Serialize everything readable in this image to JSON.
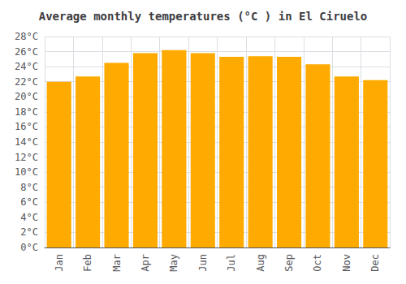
{
  "chart_data": {
    "type": "bar",
    "title": "Average monthly temperatures (°C ) in El Ciruelo",
    "categories": [
      "Jan",
      "Feb",
      "Mar",
      "Apr",
      "May",
      "Jun",
      "Jul",
      "Aug",
      "Sep",
      "Oct",
      "Nov",
      "Dec"
    ],
    "values": [
      22.0,
      22.7,
      24.5,
      25.8,
      26.2,
      25.8,
      25.3,
      25.4,
      25.3,
      24.3,
      22.7,
      22.2
    ],
    "color": "#FFAA00",
    "ylim": [
      0,
      28
    ],
    "yticks": [
      {
        "value": 0,
        "label": "0°C"
      },
      {
        "value": 2,
        "label": "2°C"
      },
      {
        "value": 4,
        "label": "4°C"
      },
      {
        "value": 6,
        "label": "6°C"
      },
      {
        "value": 8,
        "label": "8°C"
      },
      {
        "value": 10,
        "label": "10°C"
      },
      {
        "value": 12,
        "label": "12°C"
      },
      {
        "value": 14,
        "label": "14°C"
      },
      {
        "value": 16,
        "label": "16°C"
      },
      {
        "value": 18,
        "label": "18°C"
      },
      {
        "value": 20,
        "label": "20°C"
      },
      {
        "value": 22,
        "label": "22°C"
      },
      {
        "value": 24,
        "label": "24°C"
      },
      {
        "value": 26,
        "label": "26°C"
      },
      {
        "value": 28,
        "label": "28°C"
      }
    ],
    "grid": true
  }
}
